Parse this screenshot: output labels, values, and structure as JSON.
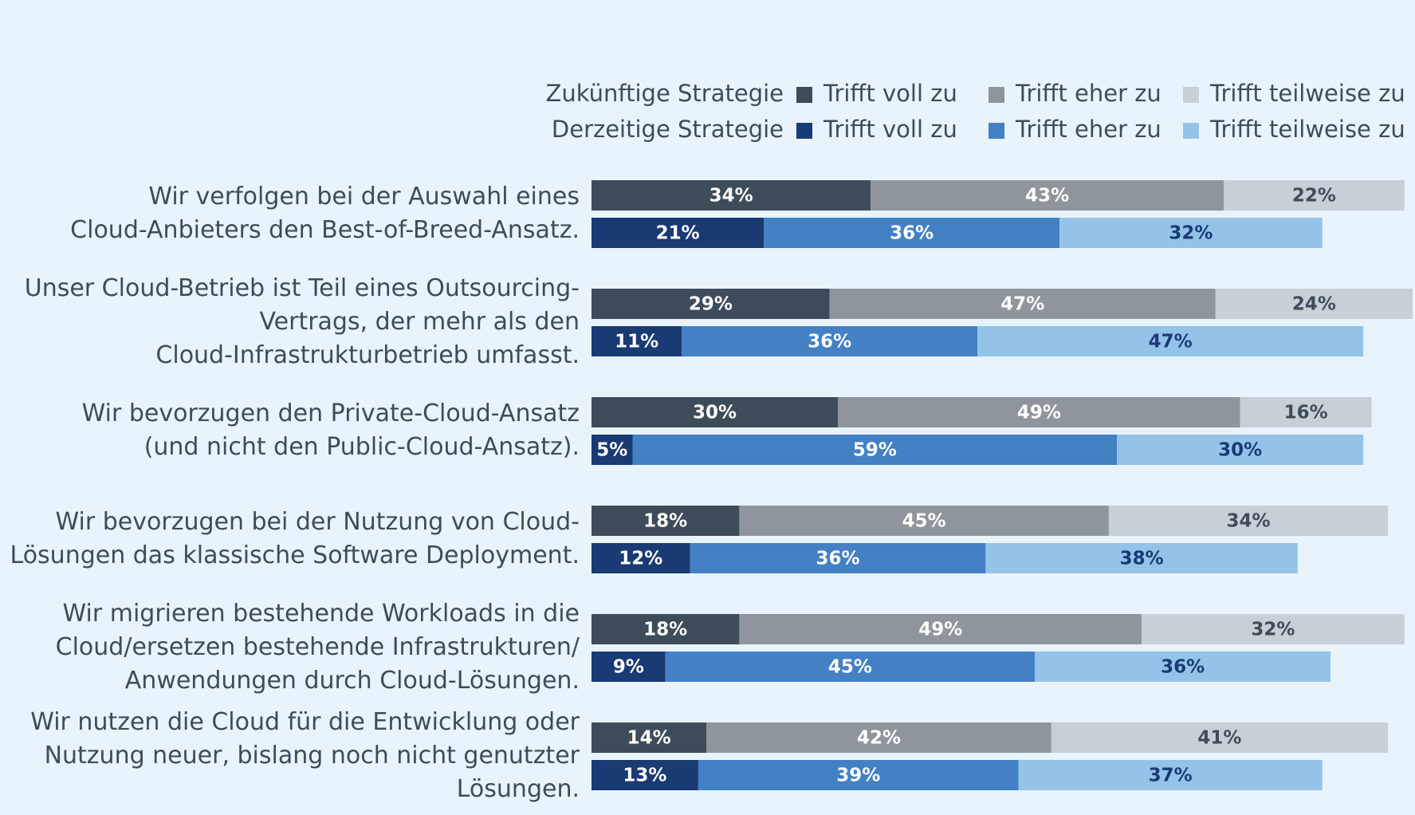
{
  "chart_data": {
    "type": "bar",
    "categories": [
      [
        "Wir verfolgen bei der Auswahl eines",
        "Cloud-Anbieters den Best-of-Breed-Ansatz."
      ],
      [
        "Unser Cloud-Betrieb ist Teil eines Outsourcing-",
        "Vertrags, der mehr als den",
        "Cloud-Infrastrukturbetrieb umfasst."
      ],
      [
        "Wir bevorzugen den Private-Cloud-Ansatz",
        "(und nicht den Public-Cloud-Ansatz)."
      ],
      [
        "Wir bevorzugen bei der Nutzung von Cloud-",
        "Lösungen das klassische Software Deployment."
      ],
      [
        "Wir migrieren bestehende Workloads in die",
        "Cloud/ersetzen bestehende Infrastrukturen/",
        "Anwendungen durch Cloud-Lösungen."
      ],
      [
        "Wir nutzen die Cloud für die Entwicklung oder",
        "Nutzung neuer, bislang noch nicht genutzter",
        "Lösungen."
      ]
    ],
    "groups": [
      {
        "name": "Zukünftige Strategie",
        "series": [
          {
            "name": "Trifft voll zu",
            "color": "#3e4c5a",
            "label_color": "#ffffff",
            "values": [
              34,
              29,
              30,
              18,
              18,
              14
            ],
            "value_labels": [
              "34%",
              "29%",
              "30%",
              "18%",
              "18%",
              "14%"
            ]
          },
          {
            "name": "Trifft eher zu",
            "color": "#8e959d",
            "label_color": "#ffffff",
            "values": [
              43,
              47,
              49,
              45,
              49,
              42
            ],
            "value_labels": [
              "43%",
              "47%",
              "49%",
              "45%",
              "49%",
              "42%"
            ]
          },
          {
            "name": "Trifft teilweise zu",
            "color": "#c9cfd6",
            "label_color": "#3e4c5a",
            "values": [
              22,
              24,
              16,
              34,
              32,
              41
            ],
            "value_labels": [
              "22%",
              "24%",
              "16%",
              "34%",
              "32%",
              "41%"
            ]
          }
        ]
      },
      {
        "name": "Derzeitige Strategie",
        "series": [
          {
            "name": "Trifft voll zu",
            "color": "#1a3a73",
            "label_color": "#ffffff",
            "values": [
              21,
              11,
              5,
              12,
              9,
              13
            ],
            "value_labels": [
              "21%",
              "11%",
              "5%",
              "12%",
              "9%",
              "13%"
            ]
          },
          {
            "name": "Trifft eher zu",
            "color": "#4380c4",
            "label_color": "#ffffff",
            "values": [
              36,
              36,
              59,
              36,
              45,
              39
            ],
            "value_labels": [
              "36%",
              "36%",
              "59%",
              "36%",
              "45%",
              "39%"
            ]
          },
          {
            "name": "Trifft teilweise zu",
            "color": "#94c3ea",
            "label_color": "#1a3a73",
            "values": [
              32,
              47,
              30,
              38,
              36,
              37
            ],
            "value_labels": [
              "32%",
              "47%",
              "30%",
              "38%",
              "36%",
              "37%"
            ]
          }
        ]
      }
    ],
    "xlim": [
      0,
      100
    ]
  }
}
